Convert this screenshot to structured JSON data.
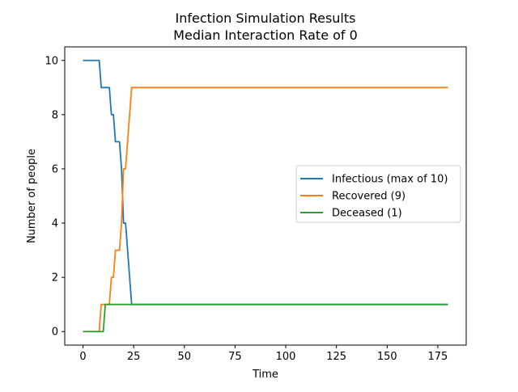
{
  "chart_data": {
    "type": "line",
    "title": "Infection Simulation Results",
    "subtitle": "Median Interaction Rate of 0",
    "xlabel": "Time",
    "ylabel": "Number of people",
    "xlim": [
      -9,
      189
    ],
    "ylim": [
      -0.5,
      10.5
    ],
    "xticks": [
      0,
      25,
      50,
      75,
      100,
      125,
      150,
      175
    ],
    "yticks": [
      0,
      2,
      4,
      6,
      8,
      10
    ],
    "grid": false,
    "legend_position": "center-right",
    "series": [
      {
        "name": "Infectious (max of 10)",
        "color": "#1f77b4",
        "x": [
          0,
          8,
          9,
          13,
          14,
          15,
          16,
          18,
          19,
          20,
          21,
          24,
          180
        ],
        "y": [
          10,
          10,
          9,
          9,
          8,
          8,
          7,
          7,
          6,
          4,
          4,
          1,
          1
        ]
      },
      {
        "name": "Recovered (9)",
        "color": "#ff7f0e",
        "x": [
          0,
          8,
          9,
          13,
          14,
          15,
          16,
          18,
          19,
          20,
          21,
          24,
          180
        ],
        "y": [
          0,
          0,
          1,
          1,
          2,
          2,
          3,
          3,
          4,
          6,
          6,
          9,
          9
        ]
      },
      {
        "name": "Deceased (1)",
        "color": "#2ca02c",
        "x": [
          0,
          10,
          11,
          180
        ],
        "y": [
          0,
          0,
          1,
          1
        ]
      }
    ]
  }
}
